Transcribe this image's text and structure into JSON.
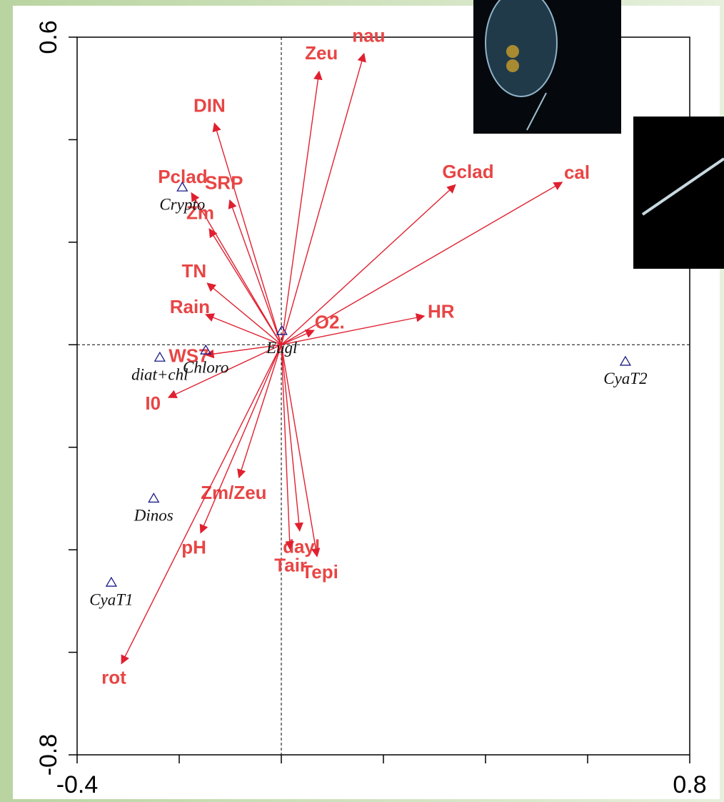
{
  "chart_data": {
    "type": "biplot",
    "xlim": [
      -0.4,
      0.8
    ],
    "ylim": [
      -0.8,
      0.6
    ],
    "xticks": [
      -0.4,
      0.8
    ],
    "yticks": [
      0.6,
      -0.8
    ],
    "xminorticks": [
      -0.2,
      0,
      0.2,
      0.4,
      0.6
    ],
    "yminorticks": [
      0.4,
      0.2,
      0,
      -0.2,
      -0.4,
      -0.6
    ],
    "zero_lines": true,
    "vectors": {
      "color": "#e02030",
      "label_color": "#e84545",
      "labels": [
        "nau",
        "Zeu",
        "DIN",
        "Pclad",
        "SRP",
        "Zm",
        "TN",
        "Rain",
        "WS7",
        "I0",
        "Gclad",
        "cal",
        "HR",
        "O2.",
        "Zm/Zeu",
        "pH",
        "rot",
        "dayl",
        "Tair",
        "Tepi"
      ],
      "x": [
        0.162,
        0.074,
        -0.131,
        -0.176,
        -0.101,
        -0.141,
        -0.145,
        -0.148,
        -0.148,
        -0.221,
        0.341,
        0.55,
        0.28,
        0.064,
        -0.083,
        -0.158,
        -0.313,
        0.036,
        0.017,
        0.07
      ],
      "y": [
        0.568,
        0.533,
        0.432,
        0.296,
        0.282,
        0.226,
        0.12,
        0.059,
        -0.02,
        -0.103,
        0.312,
        0.317,
        0.056,
        0.028,
        -0.259,
        -0.367,
        -0.622,
        -0.363,
        -0.399,
        -0.413
      ]
    },
    "points": {
      "color": "#1a1a8a",
      "labels": [
        "Crypto",
        "Eugl",
        "Chloro",
        "diat+chl",
        "CyaT2",
        "Dinos",
        "CyaT1"
      ],
      "x": [
        -0.194,
        0.001,
        -0.148,
        -0.238,
        0.674,
        -0.25,
        -0.333
      ],
      "y": [
        0.307,
        0.027,
        -0.011,
        -0.025,
        -0.033,
        -0.3,
        -0.464
      ]
    }
  }
}
